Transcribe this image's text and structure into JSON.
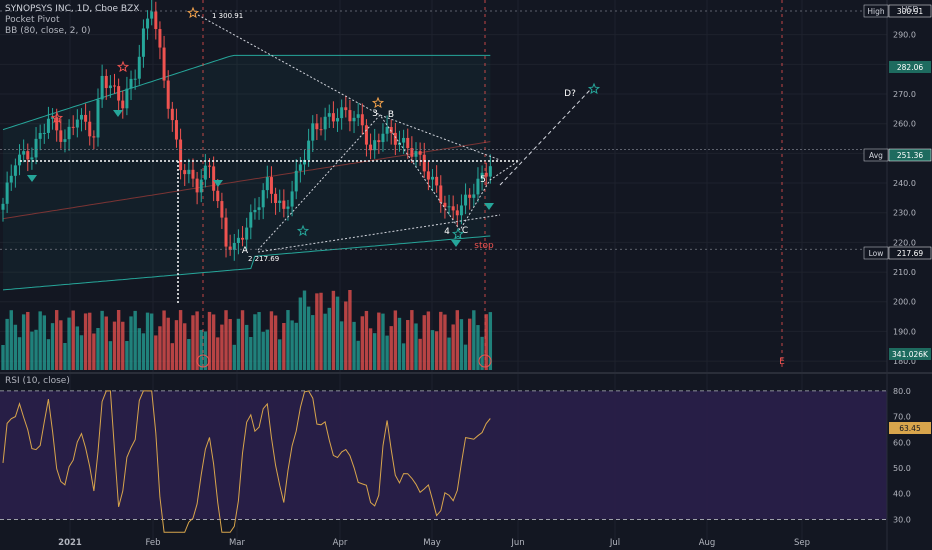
{
  "legend": {
    "title": "SYNOPSYS INC, 1D, Cboe BZX",
    "line2": "Pocket Pivot",
    "line3": "BB (80, close, 2, 0)",
    "currency": "USD",
    "rsi": "RSI (10, close)"
  },
  "colors": {
    "background": "#131722",
    "grid": "#1e222d",
    "up": "#26a69a",
    "down": "#ef5350",
    "bb": "#26a69a",
    "basis": "#7b3434",
    "rsi_line": "#d8a54c",
    "rsi_band": "#2a1f4a",
    "annot": "#ffffff"
  },
  "chart_data": [
    {
      "type": "candlestick",
      "y_axis_ticks": [
        180,
        190,
        200,
        210,
        220,
        230,
        240,
        250,
        260,
        270,
        280,
        290
      ],
      "ylim": [
        177,
        300
      ],
      "x_axis_ticks": [
        "2021",
        "Feb",
        "Mar",
        "Apr",
        "May",
        "Jun",
        "Jul",
        "Aug",
        "Sep"
      ],
      "price_labels": [
        {
          "tag": "High",
          "value": "300.91"
        },
        {
          "tag": "",
          "value": "282.06"
        },
        {
          "tag": "Avg",
          "value": "251.36"
        },
        {
          "tag": "Low",
          "value": "217.69"
        },
        {
          "tag": "",
          "value": "341.026K"
        }
      ],
      "annotations": [
        "1 300.91",
        "A",
        "2 217.69",
        "3",
        "B",
        "4",
        "C",
        "5",
        "D?",
        "E",
        "stop"
      ],
      "avg_level": 251.36,
      "high_level": 300.91,
      "low_level": 217.69,
      "bb_upper_end": 282.06
    },
    {
      "type": "line",
      "name": "RSI (10, close)",
      "y_axis_ticks": [
        30,
        40,
        50,
        60,
        70,
        80
      ],
      "ylim": [
        22,
        85
      ],
      "band": [
        30,
        80
      ],
      "last_value": "63.45"
    }
  ]
}
